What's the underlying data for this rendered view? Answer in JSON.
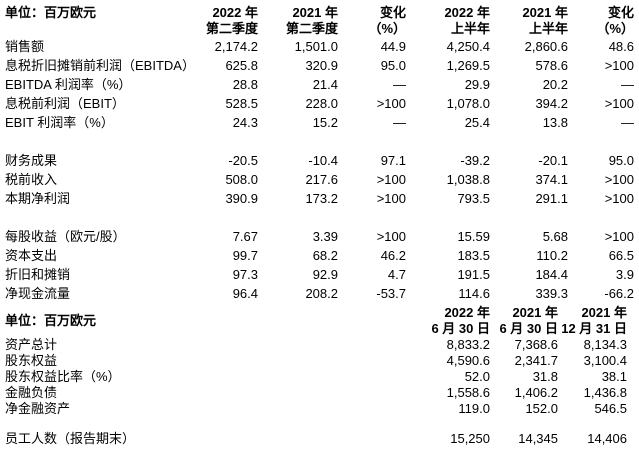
{
  "table1": {
    "unit_label": "单位：百万欧元",
    "columns": [
      "2022 年\n第二季度",
      "2021 年\n第二季度",
      "变化\n（%）",
      "2022 年\n上半年",
      "2021 年\n上半年",
      "变化\n（%）"
    ],
    "groups": [
      {
        "rows": [
          {
            "label": "销售额",
            "values": [
              "2,174.2",
              "1,501.0",
              "44.9",
              "4,250.4",
              "2,860.6",
              "48.6"
            ]
          },
          {
            "label": "息税折旧摊销前利润（EBITDA）",
            "values": [
              "625.8",
              "320.9",
              "95.0",
              "1,269.5",
              "578.6",
              ">100"
            ]
          },
          {
            "label": "EBITDA 利润率（%）",
            "values": [
              "28.8",
              "21.4",
              "—",
              "29.9",
              "20.2",
              "—"
            ]
          },
          {
            "label": "息税前利润（EBIT）",
            "values": [
              "528.5",
              "228.0",
              ">100",
              "1,078.0",
              "394.2",
              ">100"
            ]
          },
          {
            "label": "EBIT 利润率（%）",
            "values": [
              "24.3",
              "15.2",
              "—",
              "25.4",
              "13.8",
              "—"
            ]
          }
        ]
      },
      {
        "rows": [
          {
            "label": "财务成果",
            "values": [
              "-20.5",
              "-10.4",
              "97.1",
              "-39.2",
              "-20.1",
              "95.0"
            ]
          },
          {
            "label": "税前收入",
            "values": [
              "508.0",
              "217.6",
              ">100",
              "1,038.8",
              "374.1",
              ">100"
            ]
          },
          {
            "label": "本期净利润",
            "values": [
              "390.9",
              "173.2",
              ">100",
              "793.5",
              "291.1",
              ">100"
            ]
          }
        ]
      },
      {
        "rows": [
          {
            "label": "每股收益（欧元/股）",
            "values": [
              "7.67",
              "3.39",
              ">100",
              "15.59",
              "5.68",
              ">100"
            ]
          },
          {
            "label": "资本支出",
            "values": [
              "99.7",
              "68.2",
              "46.2",
              "183.5",
              "110.2",
              "66.5"
            ]
          },
          {
            "label": "折旧和摊销",
            "values": [
              "97.3",
              "92.9",
              "4.7",
              "191.5",
              "184.4",
              "3.9"
            ]
          },
          {
            "label": "净现金流量",
            "values": [
              "96.4",
              "208.2",
              "-53.7",
              "114.6",
              "339.3",
              "-66.2"
            ]
          }
        ]
      }
    ]
  },
  "table2": {
    "unit_label": "单位：百万欧元",
    "columns": [
      "2022 年\n6 月 30 日",
      "2021 年\n6 月 30 日",
      "2021 年\n12 月 31 日"
    ],
    "groups": [
      {
        "rows": [
          {
            "label": "资产总计",
            "values": [
              "8,833.2",
              "7,368.6",
              "8,134.3"
            ]
          },
          {
            "label": "股东权益",
            "values": [
              "4,590.6",
              "2,341.7",
              "3,100.4"
            ]
          },
          {
            "label": "股东权益比率（%）",
            "values": [
              "52.0",
              "31.8",
              "38.1"
            ]
          },
          {
            "label": "金融负债",
            "values": [
              "1,558.6",
              "1,406.2",
              "1,436.8"
            ]
          },
          {
            "label": "净金融资产",
            "values": [
              "119.0",
              "152.0",
              "546.5"
            ]
          }
        ]
      },
      {
        "rows": [
          {
            "label": "员工人数（报告期末）",
            "values": [
              "15,250",
              "14,345",
              "14,406"
            ]
          }
        ]
      }
    ]
  }
}
